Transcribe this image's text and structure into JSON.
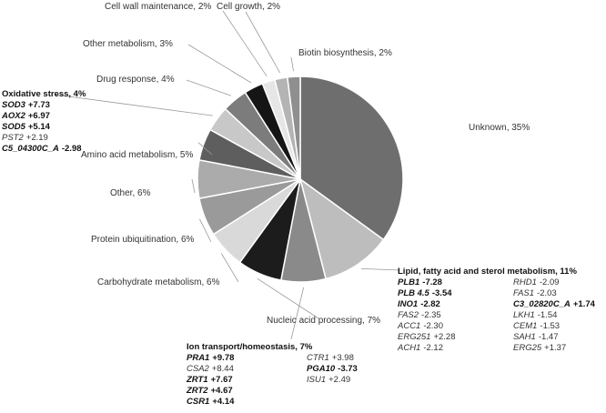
{
  "chart_data": {
    "type": "pie",
    "title": "",
    "slices": [
      {
        "label": "Unknown, 35%",
        "value": 35,
        "color": "#6e6e6e"
      },
      {
        "label": "Lipid, fatty acid and sterol metabolism, 11%",
        "value": 11,
        "color": "#bdbdbd"
      },
      {
        "label": "Ion transport/homeostasis, 7%",
        "value": 7,
        "color": "#8a8a8a"
      },
      {
        "label": "Nucleic acid processing, 7%",
        "value": 7,
        "color": "#1c1c1c"
      },
      {
        "label": "Carbohydrate metabolism, 6%",
        "value": 6,
        "color": "#d9d9d9"
      },
      {
        "label": "Protein ubiquitination, 6%",
        "value": 6,
        "color": "#9a9a9a"
      },
      {
        "label": "Other, 6%",
        "value": 6,
        "color": "#ababab"
      },
      {
        "label": "Amino acid metabolism, 5%",
        "value": 5,
        "color": "#5e5e5e"
      },
      {
        "label": "Oxidative stress, 4%",
        "value": 4,
        "color": "#c8c8c8"
      },
      {
        "label": "Drug response, 4%",
        "value": 4,
        "color": "#7c7c7c"
      },
      {
        "label": "Other metabolism, 3%",
        "value": 3,
        "color": "#151515"
      },
      {
        "label": "Cell wall maintenance, 2%",
        "value": 2,
        "color": "#e6e6e6"
      },
      {
        "label": "Cell growth, 2%",
        "value": 2,
        "color": "#b4b4b4"
      },
      {
        "label": "Biotin biosynthesis, 2%",
        "value": 2,
        "color": "#8f8f8f"
      }
    ],
    "legend": "none"
  },
  "annotations": {
    "oxidative": {
      "header": "Oxidative stress, 4%",
      "genes": [
        {
          "name": "SOD3",
          "value": "+7.73",
          "bold": true
        },
        {
          "name": "AOX2",
          "value": "+6.97",
          "bold": true
        },
        {
          "name": "SOD5",
          "value": "+5.14",
          "bold": true
        },
        {
          "name": "PST2",
          "value": "+2.19",
          "bold": false
        },
        {
          "name": "C5_04300C_A",
          "value": "-2.98",
          "bold": true
        }
      ]
    },
    "lipid": {
      "header": "Lipid, fatty acid and sterol metabolism, 11%",
      "left": [
        {
          "name": "PLB1",
          "value": "-7.28",
          "bold": true
        },
        {
          "name": "PLB 4.5",
          "value": "-3.54",
          "bold": true
        },
        {
          "name": "INO1",
          "value": "-2.82",
          "bold": true
        },
        {
          "name": "FAS2",
          "value": "-2.35",
          "bold": false
        },
        {
          "name": "ACC1",
          "value": "-2.30",
          "bold": false
        },
        {
          "name": "ERG251",
          "value": "+2.28",
          "bold": false
        },
        {
          "name": "ACH1",
          "value": "-2.12",
          "bold": false
        }
      ],
      "right": [
        {
          "name": "RHD1",
          "value": "-2.09",
          "bold": false
        },
        {
          "name": "FAS1",
          "value": "-2.03",
          "bold": false
        },
        {
          "name": "C3_02820C_A",
          "value": "+1.74",
          "bold": true
        },
        {
          "name": "LKH1",
          "value": "-1.54",
          "bold": false
        },
        {
          "name": "CEM1",
          "value": "-1.53",
          "bold": false
        },
        {
          "name": "SAH1",
          "value": "-1.47",
          "bold": false
        },
        {
          "name": "ERG25",
          "value": "+1.37",
          "bold": false
        }
      ]
    },
    "ion": {
      "header": "Ion transport/homeostasis, 7%",
      "left": [
        {
          "name": "PRA1",
          "value": "+9.78",
          "bold": true
        },
        {
          "name": "CSA2",
          "value": "+8.44",
          "bold": false
        },
        {
          "name": "ZRT1",
          "value": "+7.67",
          "bold": true
        },
        {
          "name": "ZRT2",
          "value": "+4.67",
          "bold": true
        },
        {
          "name": "CSR1",
          "value": "+4.14",
          "bold": true
        }
      ],
      "right": [
        {
          "name": "CTR1",
          "value": "+3.98",
          "bold": false
        },
        {
          "name": "PGA10",
          "value": "-3.73",
          "bold": true
        },
        {
          "name": "ISU1",
          "value": "+2.49",
          "bold": false
        }
      ]
    }
  }
}
